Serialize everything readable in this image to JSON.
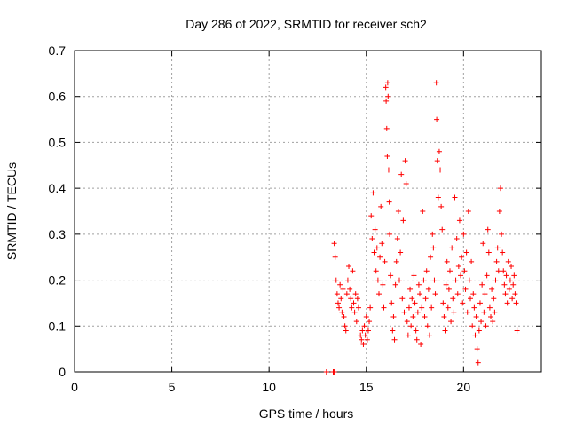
{
  "chart_data": {
    "type": "scatter",
    "title": "Day 286 of 2022, SRMTID for receiver sch2",
    "xlabel": "GPS time / hours",
    "ylabel": "SRMTID / TECUs",
    "xlim": [
      0,
      24
    ],
    "ylim": [
      0,
      0.7
    ],
    "x_ticks": [
      0,
      5,
      10,
      15,
      20
    ],
    "x_tick_labels": [
      "0",
      "5",
      "10",
      "15",
      "20"
    ],
    "y_ticks": [
      0,
      0.1,
      0.2,
      0.3,
      0.4,
      0.5,
      0.6,
      0.7
    ],
    "y_tick_labels": [
      "0",
      "0.1",
      "0.2",
      "0.3",
      "0.4",
      "0.5",
      "0.6",
      "0.7"
    ],
    "grid": true,
    "marker": "+",
    "color": "#ff0000",
    "series": [
      {
        "name": "SRMTID",
        "points": [
          [
            12.95,
            0.0
          ],
          [
            13.3,
            0.0
          ],
          [
            13.35,
            0.0
          ],
          [
            13.35,
            0.28
          ],
          [
            13.4,
            0.25
          ],
          [
            13.45,
            0.2
          ],
          [
            13.5,
            0.17
          ],
          [
            13.55,
            0.15
          ],
          [
            13.6,
            0.14
          ],
          [
            13.65,
            0.19
          ],
          [
            13.7,
            0.16
          ],
          [
            13.75,
            0.13
          ],
          [
            13.8,
            0.18
          ],
          [
            13.85,
            0.12
          ],
          [
            13.9,
            0.1
          ],
          [
            13.95,
            0.09
          ],
          [
            14.0,
            0.17
          ],
          [
            14.05,
            0.2
          ],
          [
            14.1,
            0.23
          ],
          [
            14.15,
            0.18
          ],
          [
            14.2,
            0.16
          ],
          [
            14.25,
            0.14
          ],
          [
            14.3,
            0.22
          ],
          [
            14.35,
            0.15
          ],
          [
            14.4,
            0.13
          ],
          [
            14.45,
            0.17
          ],
          [
            14.5,
            0.11
          ],
          [
            14.55,
            0.16
          ],
          [
            14.6,
            0.14
          ],
          [
            14.7,
            0.08
          ],
          [
            14.75,
            0.07
          ],
          [
            14.8,
            0.09
          ],
          [
            14.85,
            0.06
          ],
          [
            14.9,
            0.1
          ],
          [
            14.95,
            0.08
          ],
          [
            15.0,
            0.12
          ],
          [
            15.05,
            0.07
          ],
          [
            15.1,
            0.09
          ],
          [
            15.15,
            0.11
          ],
          [
            15.2,
            0.14
          ],
          [
            15.25,
            0.34
          ],
          [
            15.3,
            0.29
          ],
          [
            15.35,
            0.39
          ],
          [
            15.4,
            0.26
          ],
          [
            15.45,
            0.31
          ],
          [
            15.5,
            0.22
          ],
          [
            15.55,
            0.27
          ],
          [
            15.6,
            0.2
          ],
          [
            15.65,
            0.17
          ],
          [
            15.7,
            0.25
          ],
          [
            15.75,
            0.36
          ],
          [
            15.8,
            0.28
          ],
          [
            15.85,
            0.19
          ],
          [
            15.9,
            0.14
          ],
          [
            15.95,
            0.24
          ],
          [
            16.0,
            0.62
          ],
          [
            16.02,
            0.59
          ],
          [
            16.05,
            0.53
          ],
          [
            16.08,
            0.47
          ],
          [
            16.1,
            0.63
          ],
          [
            16.12,
            0.6
          ],
          [
            16.15,
            0.44
          ],
          [
            16.18,
            0.37
          ],
          [
            16.2,
            0.3
          ],
          [
            16.25,
            0.21
          ],
          [
            16.3,
            0.15
          ],
          [
            16.35,
            0.09
          ],
          [
            16.4,
            0.12
          ],
          [
            16.45,
            0.07
          ],
          [
            16.5,
            0.19
          ],
          [
            16.55,
            0.24
          ],
          [
            16.6,
            0.29
          ],
          [
            16.65,
            0.35
          ],
          [
            16.7,
            0.2
          ],
          [
            16.75,
            0.26
          ],
          [
            16.8,
            0.43
          ],
          [
            16.85,
            0.16
          ],
          [
            16.9,
            0.33
          ],
          [
            16.95,
            0.13
          ],
          [
            17.0,
            0.46
          ],
          [
            17.05,
            0.41
          ],
          [
            17.1,
            0.11
          ],
          [
            17.15,
            0.08
          ],
          [
            17.2,
            0.14
          ],
          [
            17.25,
            0.18
          ],
          [
            17.3,
            0.1
          ],
          [
            17.35,
            0.16
          ],
          [
            17.4,
            0.12
          ],
          [
            17.45,
            0.21
          ],
          [
            17.5,
            0.15
          ],
          [
            17.55,
            0.09
          ],
          [
            17.6,
            0.07
          ],
          [
            17.65,
            0.13
          ],
          [
            17.7,
            0.19
          ],
          [
            17.75,
            0.17
          ],
          [
            17.8,
            0.06
          ],
          [
            17.85,
            0.14
          ],
          [
            17.9,
            0.35
          ],
          [
            17.95,
            0.2
          ],
          [
            18.0,
            0.12
          ],
          [
            18.05,
            0.16
          ],
          [
            18.1,
            0.22
          ],
          [
            18.15,
            0.1
          ],
          [
            18.2,
            0.18
          ],
          [
            18.25,
            0.08
          ],
          [
            18.3,
            0.25
          ],
          [
            18.35,
            0.14
          ],
          [
            18.4,
            0.3
          ],
          [
            18.45,
            0.27
          ],
          [
            18.5,
            0.2
          ],
          [
            18.55,
            0.17
          ],
          [
            18.6,
            0.63
          ],
          [
            18.62,
            0.55
          ],
          [
            18.65,
            0.46
          ],
          [
            18.7,
            0.38
          ],
          [
            18.75,
            0.48
          ],
          [
            18.8,
            0.44
          ],
          [
            18.85,
            0.36
          ],
          [
            18.9,
            0.31
          ],
          [
            18.95,
            0.15
          ],
          [
            19.0,
            0.12
          ],
          [
            19.05,
            0.09
          ],
          [
            19.1,
            0.19
          ],
          [
            19.15,
            0.24
          ],
          [
            19.2,
            0.14
          ],
          [
            19.25,
            0.18
          ],
          [
            19.3,
            0.22
          ],
          [
            19.35,
            0.11
          ],
          [
            19.4,
            0.27
          ],
          [
            19.45,
            0.16
          ],
          [
            19.5,
            0.13
          ],
          [
            19.55,
            0.38
          ],
          [
            19.6,
            0.2
          ],
          [
            19.65,
            0.29
          ],
          [
            19.7,
            0.17
          ],
          [
            19.75,
            0.23
          ],
          [
            19.8,
            0.33
          ],
          [
            19.85,
            0.21
          ],
          [
            19.9,
            0.25
          ],
          [
            19.95,
            0.15
          ],
          [
            20.0,
            0.3
          ],
          [
            20.05,
            0.22
          ],
          [
            20.1,
            0.18
          ],
          [
            20.15,
            0.26
          ],
          [
            20.2,
            0.13
          ],
          [
            20.25,
            0.35
          ],
          [
            20.3,
            0.2
          ],
          [
            20.35,
            0.16
          ],
          [
            20.4,
            0.24
          ],
          [
            20.45,
            0.1
          ],
          [
            20.5,
            0.17
          ],
          [
            20.55,
            0.14
          ],
          [
            20.6,
            0.08
          ],
          [
            20.65,
            0.12
          ],
          [
            20.7,
            0.05
          ],
          [
            20.75,
            0.02
          ],
          [
            20.8,
            0.09
          ],
          [
            20.85,
            0.15
          ],
          [
            20.9,
            0.11
          ],
          [
            20.95,
            0.19
          ],
          [
            21.0,
            0.28
          ],
          [
            21.05,
            0.13
          ],
          [
            21.1,
            0.17
          ],
          [
            21.15,
            0.1
          ],
          [
            21.2,
            0.21
          ],
          [
            21.25,
            0.31
          ],
          [
            21.3,
            0.26
          ],
          [
            21.35,
            0.14
          ],
          [
            21.4,
            0.12
          ],
          [
            21.45,
            0.18
          ],
          [
            21.5,
            0.11
          ],
          [
            21.55,
            0.16
          ],
          [
            21.6,
            0.13
          ],
          [
            21.65,
            0.2
          ],
          [
            21.7,
            0.24
          ],
          [
            21.75,
            0.27
          ],
          [
            21.8,
            0.22
          ],
          [
            21.85,
            0.35
          ],
          [
            21.9,
            0.4
          ],
          [
            21.95,
            0.3
          ],
          [
            22.0,
            0.26
          ],
          [
            22.05,
            0.22
          ],
          [
            22.1,
            0.19
          ],
          [
            22.15,
            0.17
          ],
          [
            22.2,
            0.21
          ],
          [
            22.25,
            0.15
          ],
          [
            22.3,
            0.24
          ],
          [
            22.35,
            0.18
          ],
          [
            22.4,
            0.2
          ],
          [
            22.45,
            0.23
          ],
          [
            22.5,
            0.16
          ],
          [
            22.55,
            0.19
          ],
          [
            22.6,
            0.21
          ],
          [
            22.65,
            0.17
          ],
          [
            22.7,
            0.15
          ],
          [
            22.75,
            0.09
          ]
        ]
      }
    ]
  }
}
